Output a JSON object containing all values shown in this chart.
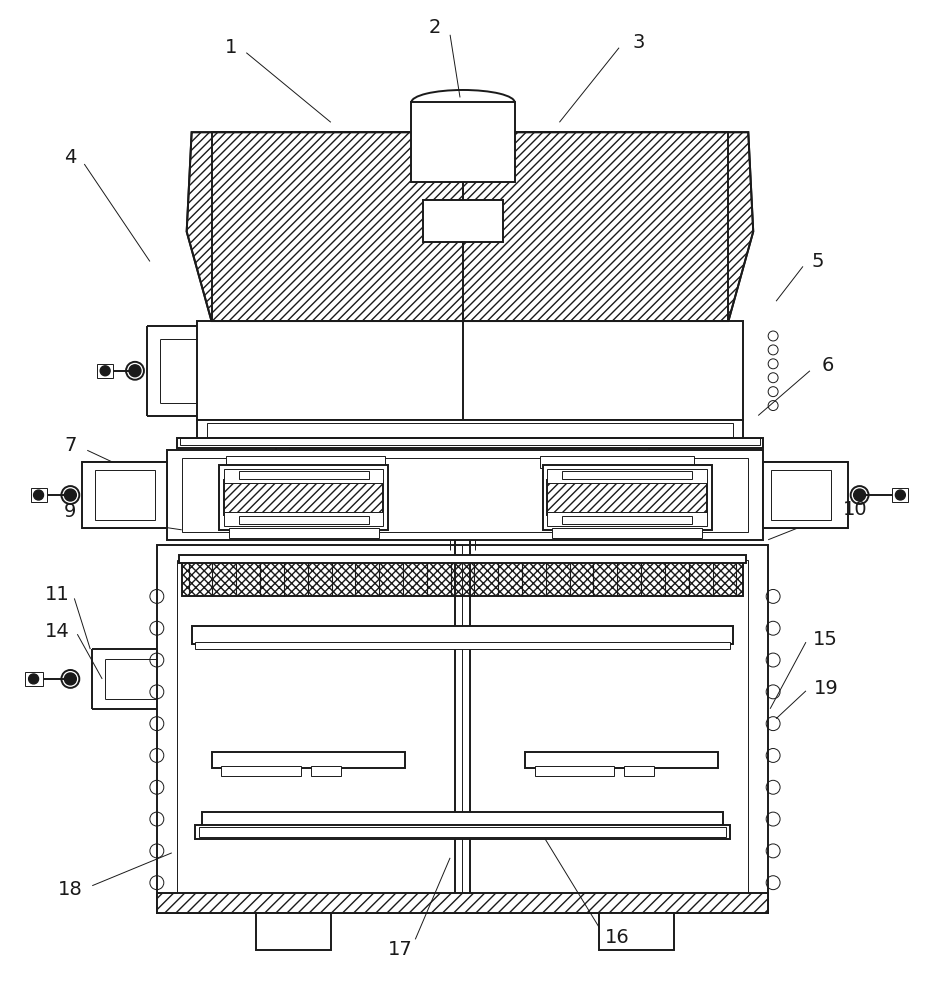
{
  "bg_color": "#ffffff",
  "line_color": "#1a1a1a",
  "lw": 1.4,
  "tlw": 0.7,
  "fig_width": 9.26,
  "fig_height": 10.0,
  "labels": [
    "1",
    "2",
    "3",
    "4",
    "5",
    "6",
    "7",
    "9",
    "10",
    "11",
    "14",
    "15",
    "16",
    "17",
    "18",
    "19"
  ]
}
